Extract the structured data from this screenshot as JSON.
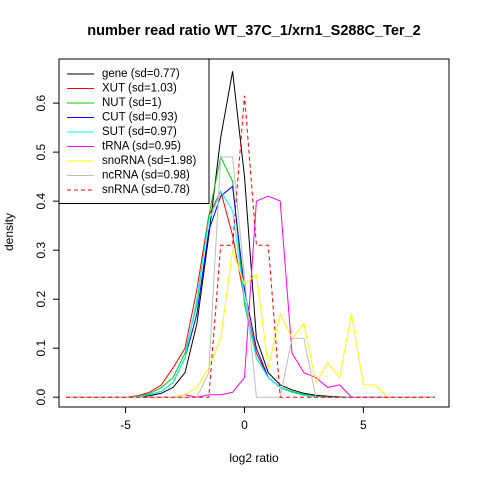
{
  "chart_data": {
    "type": "line",
    "title": "number read ratio WT_37C_1/xrn1_S288C_Ter_2",
    "xlabel": "log2 ratio",
    "ylabel": "density",
    "xlim": [
      -7.8,
      8.6
    ],
    "ylim": [
      -0.02,
      0.69
    ],
    "x_ticks": [
      -5,
      0,
      5
    ],
    "x_tick_labels": [
      "-5",
      "0",
      "5"
    ],
    "y_ticks": [
      0.0,
      0.1,
      0.2,
      0.3,
      0.4,
      0.5,
      0.6
    ],
    "y_tick_labels": [
      "0.0",
      "0.1",
      "0.2",
      "0.3",
      "0.4",
      "0.5",
      "0.6"
    ],
    "grid": false,
    "legend_position": "top-left",
    "series": [
      {
        "name": "gene (sd=0.77)",
        "color": "#000000",
        "dash": "solid",
        "points": [
          [
            -7.5,
            0
          ],
          [
            -5,
            0
          ],
          [
            -4.5,
            0.001
          ],
          [
            -4,
            0.003
          ],
          [
            -3.5,
            0.008
          ],
          [
            -3,
            0.02
          ],
          [
            -2.5,
            0.05
          ],
          [
            -2,
            0.15
          ],
          [
            -1.5,
            0.33
          ],
          [
            -1,
            0.53
          ],
          [
            -0.5,
            0.665
          ],
          [
            0,
            0.45
          ],
          [
            0.5,
            0.12
          ],
          [
            1,
            0.05
          ],
          [
            1.5,
            0.025
          ],
          [
            2,
            0.015
          ],
          [
            2.5,
            0.008
          ],
          [
            3,
            0.004
          ],
          [
            3.5,
            0.002
          ],
          [
            4,
            0.001
          ],
          [
            4.5,
            0
          ],
          [
            8,
            0
          ]
        ]
      },
      {
        "name": "XUT (sd=1.03)",
        "color": "#ff0000",
        "dash": "solid",
        "points": [
          [
            -7.5,
            0
          ],
          [
            -5,
            0
          ],
          [
            -4.5,
            0.003
          ],
          [
            -4,
            0.01
          ],
          [
            -3.5,
            0.025
          ],
          [
            -3,
            0.06
          ],
          [
            -2.5,
            0.1
          ],
          [
            -2,
            0.22
          ],
          [
            -1.5,
            0.37
          ],
          [
            -1,
            0.42
          ],
          [
            -0.5,
            0.33
          ],
          [
            0,
            0.2
          ],
          [
            0.5,
            0.09
          ],
          [
            1,
            0.04
          ],
          [
            1.5,
            0.02
          ],
          [
            2,
            0.01
          ],
          [
            2.5,
            0.005
          ],
          [
            3,
            0.002
          ],
          [
            3.5,
            0
          ],
          [
            8,
            0
          ]
        ]
      },
      {
        "name": "NUT (sd=1)",
        "color": "#00cc00",
        "dash": "solid",
        "points": [
          [
            -7.5,
            0
          ],
          [
            -5,
            0
          ],
          [
            -4.5,
            0.002
          ],
          [
            -4,
            0.007
          ],
          [
            -3.5,
            0.02
          ],
          [
            -3,
            0.04
          ],
          [
            -2.5,
            0.09
          ],
          [
            -2,
            0.19
          ],
          [
            -1.5,
            0.37
          ],
          [
            -1,
            0.49
          ],
          [
            -0.5,
            0.44
          ],
          [
            0,
            0.19
          ],
          [
            0.5,
            0.08
          ],
          [
            1,
            0.04
          ],
          [
            1.5,
            0.02
          ],
          [
            2,
            0.012
          ],
          [
            2.5,
            0.006
          ],
          [
            3,
            0.002
          ],
          [
            3.5,
            0
          ],
          [
            8,
            0
          ]
        ]
      },
      {
        "name": "CUT (sd=0.93)",
        "color": "#0000ff",
        "dash": "solid",
        "points": [
          [
            -7.5,
            0
          ],
          [
            -5,
            0
          ],
          [
            -4.5,
            0.001
          ],
          [
            -4,
            0.005
          ],
          [
            -3.5,
            0.012
          ],
          [
            -3,
            0.03
          ],
          [
            -2.5,
            0.08
          ],
          [
            -2,
            0.17
          ],
          [
            -1.5,
            0.34
          ],
          [
            -1,
            0.41
          ],
          [
            -0.5,
            0.43
          ],
          [
            0,
            0.22
          ],
          [
            0.5,
            0.1
          ],
          [
            1,
            0.04
          ],
          [
            1.5,
            0.02
          ],
          [
            2,
            0.01
          ],
          [
            2.5,
            0.004
          ],
          [
            3,
            0.001
          ],
          [
            3.5,
            0
          ],
          [
            8,
            0
          ]
        ]
      },
      {
        "name": "SUT (sd=0.97)",
        "color": "#00ffff",
        "dash": "solid",
        "points": [
          [
            -7.5,
            0
          ],
          [
            -5,
            0
          ],
          [
            -4.5,
            0.001
          ],
          [
            -4,
            0.005
          ],
          [
            -3.5,
            0.012
          ],
          [
            -3,
            0.03
          ],
          [
            -2.5,
            0.08
          ],
          [
            -2,
            0.2
          ],
          [
            -1.5,
            0.36
          ],
          [
            -1,
            0.42
          ],
          [
            -0.5,
            0.38
          ],
          [
            0,
            0.2
          ],
          [
            0.5,
            0.08
          ],
          [
            1,
            0.04
          ],
          [
            1.5,
            0.02
          ],
          [
            2,
            0.01
          ],
          [
            2.5,
            0.004
          ],
          [
            3,
            0.001
          ],
          [
            3.5,
            0
          ],
          [
            8,
            0
          ]
        ]
      },
      {
        "name": "tRNA (sd=0.95)",
        "color": "#ff00ff",
        "dash": "solid",
        "points": [
          [
            -7.5,
            0
          ],
          [
            -3,
            0
          ],
          [
            -2.5,
            0.005
          ],
          [
            -2,
            0
          ],
          [
            -1.5,
            0.005
          ],
          [
            -1,
            0.005
          ],
          [
            -0.5,
            0.01
          ],
          [
            0,
            0.04
          ],
          [
            0.5,
            0.4
          ],
          [
            1,
            0.41
          ],
          [
            1.5,
            0.4
          ],
          [
            2,
            0.09
          ],
          [
            2.5,
            0.05
          ],
          [
            3,
            0.04
          ],
          [
            3.5,
            0.02
          ],
          [
            4,
            0.025
          ],
          [
            4.5,
            0
          ],
          [
            8,
            0
          ]
        ]
      },
      {
        "name": "snoRNA (sd=1.98)",
        "color": "#ffff00",
        "dash": "solid",
        "points": [
          [
            -7.5,
            0
          ],
          [
            -3,
            0
          ],
          [
            -2.5,
            0.005
          ],
          [
            -2,
            0.02
          ],
          [
            -1.5,
            0.06
          ],
          [
            -1,
            0.12
          ],
          [
            -0.5,
            0.3
          ],
          [
            0,
            0.23
          ],
          [
            0.5,
            0.25
          ],
          [
            1,
            0.06
          ],
          [
            1.5,
            0.17
          ],
          [
            2,
            0.12
          ],
          [
            2.5,
            0.15
          ],
          [
            3,
            0.03
          ],
          [
            3.5,
            0.07
          ],
          [
            4,
            0.04
          ],
          [
            4.5,
            0.17
          ],
          [
            5,
            0.025
          ],
          [
            5.5,
            0.025
          ],
          [
            6,
            0
          ],
          [
            8,
            0
          ]
        ]
      },
      {
        "name": "ncRNA (sd=0.98)",
        "color": "#bebebe",
        "dash": "solid",
        "points": [
          [
            -7.5,
            0
          ],
          [
            -2,
            0
          ],
          [
            -1.5,
            0.05
          ],
          [
            -1,
            0.49
          ],
          [
            -0.5,
            0.49
          ],
          [
            0,
            0.245
          ],
          [
            0.5,
            0
          ],
          [
            1,
            0
          ],
          [
            1.5,
            0
          ],
          [
            2,
            0.12
          ],
          [
            2.5,
            0.12
          ],
          [
            3,
            0
          ],
          [
            8,
            0
          ]
        ]
      },
      {
        "name": "snRNA (sd=0.78)",
        "color": "#ff0000",
        "dash": "dashed",
        "points": [
          [
            -7.5,
            0
          ],
          [
            -2,
            0
          ],
          [
            -1.5,
            0
          ],
          [
            -1,
            0.31
          ],
          [
            -0.5,
            0.31
          ],
          [
            0,
            0.615
          ],
          [
            0.5,
            0.31
          ],
          [
            1,
            0.31
          ],
          [
            1.5,
            0
          ],
          [
            2,
            0
          ],
          [
            8,
            0
          ]
        ]
      }
    ]
  }
}
